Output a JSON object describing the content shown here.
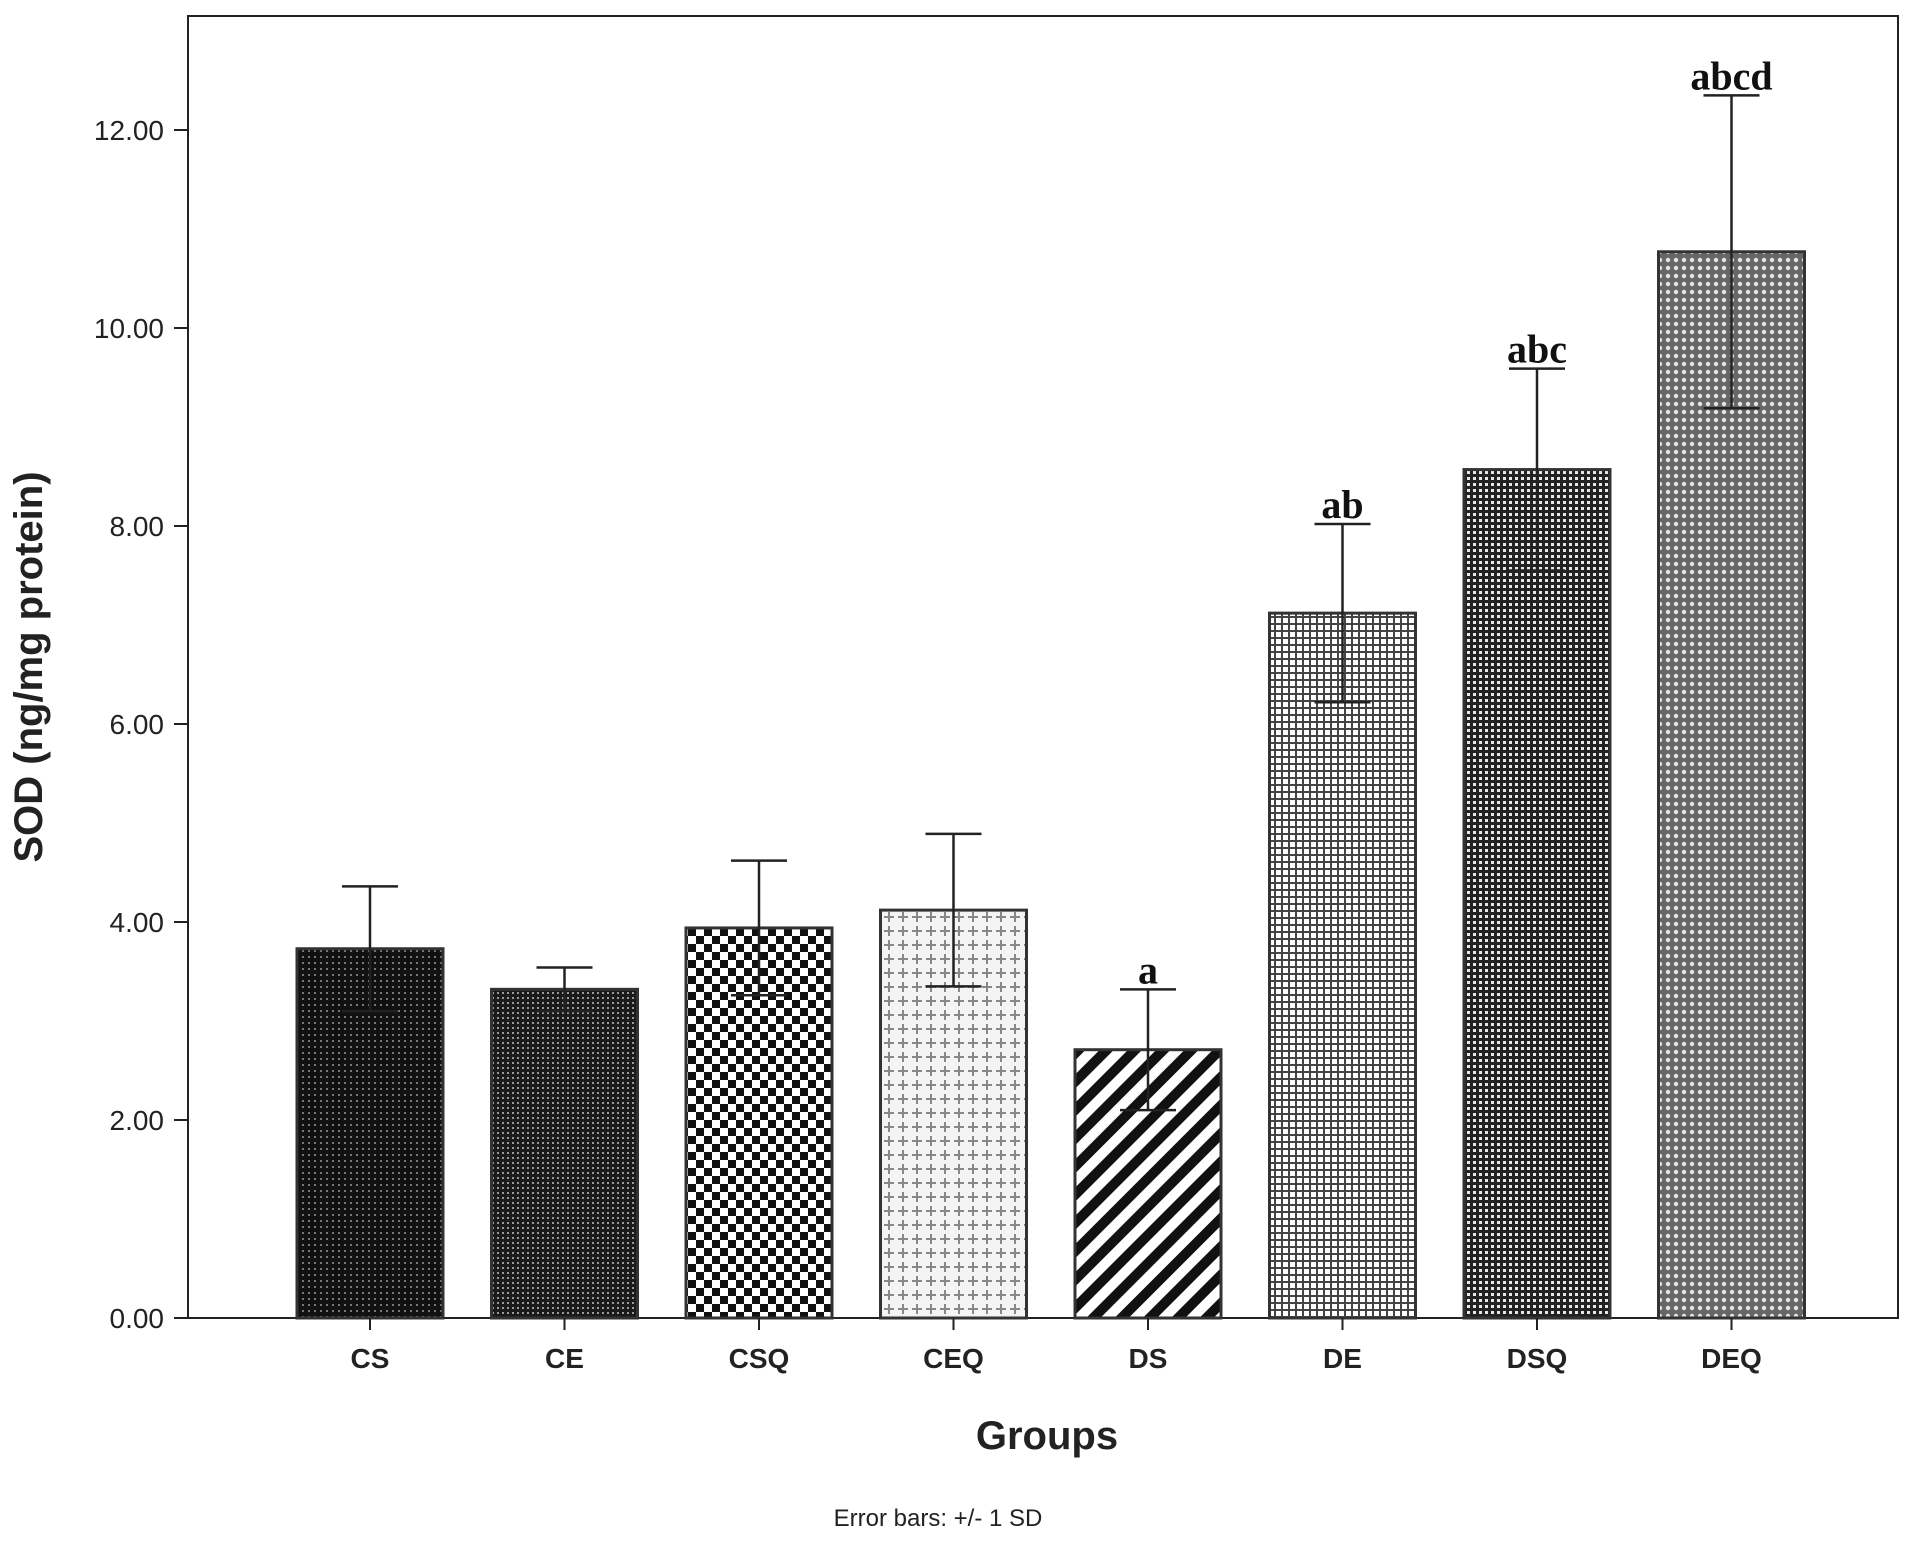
{
  "chart_data": {
    "type": "bar",
    "title": "",
    "xlabel": "Groups",
    "ylabel": "SOD (ng/mg protein)",
    "ylim": [
      0,
      13.2
    ],
    "yticks": [
      "0.00",
      "2.00",
      "4.00",
      "6.00",
      "8.00",
      "10.00",
      "12.00"
    ],
    "ytick_values": [
      0,
      2,
      4,
      6,
      8,
      10,
      12
    ],
    "categories": [
      "CS",
      "CE",
      "CSQ",
      "CEQ",
      "DS",
      "DE",
      "DSQ",
      "DEQ"
    ],
    "values": [
      3.73,
      3.32,
      3.94,
      4.12,
      2.71,
      7.12,
      8.57,
      10.77
    ],
    "sd": [
      0.63,
      0.22,
      0.68,
      0.77,
      0.61,
      0.9,
      1.02,
      1.58
    ],
    "significance": [
      "",
      "",
      "",
      "",
      "a",
      "ab",
      "abc",
      "abcd"
    ],
    "patterns": [
      "dense-dots",
      "fine-dots",
      "checker",
      "crosses",
      "diagonal",
      "grid-light",
      "grid-dark",
      "dots-mesh"
    ],
    "note": "Error bars: +/- 1 SD",
    "grid": false
  }
}
